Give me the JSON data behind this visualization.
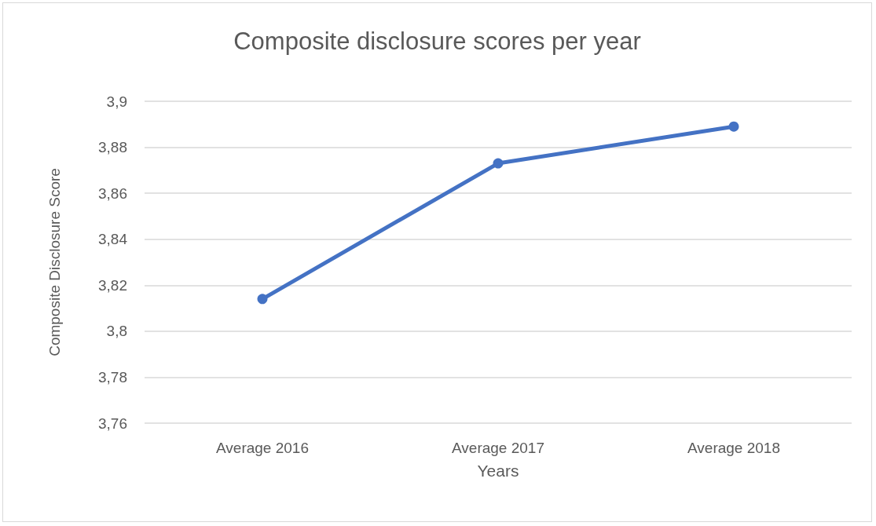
{
  "chart_data": {
    "type": "line",
    "title": "Composite disclosure scores per year",
    "xlabel": "Years",
    "ylabel": "Composite Disclosure Score",
    "categories": [
      "Average 2016",
      "Average 2017",
      "Average 2018"
    ],
    "series": [
      {
        "color": "#4472c4",
        "values": [
          3.814,
          3.873,
          3.889
        ]
      }
    ],
    "ylim": [
      3.76,
      3.9
    ],
    "yticks": [
      {
        "value": 3.76,
        "label": "3,76"
      },
      {
        "value": 3.78,
        "label": "3,78"
      },
      {
        "value": 3.8,
        "label": "3,8"
      },
      {
        "value": 3.82,
        "label": "3,82"
      },
      {
        "value": 3.84,
        "label": "3,84"
      },
      {
        "value": 3.86,
        "label": "3,86"
      },
      {
        "value": 3.88,
        "label": "3,88"
      },
      {
        "value": 3.9,
        "label": "3,9"
      }
    ],
    "grid": "y",
    "marker": "circle",
    "line_style": "solid"
  }
}
